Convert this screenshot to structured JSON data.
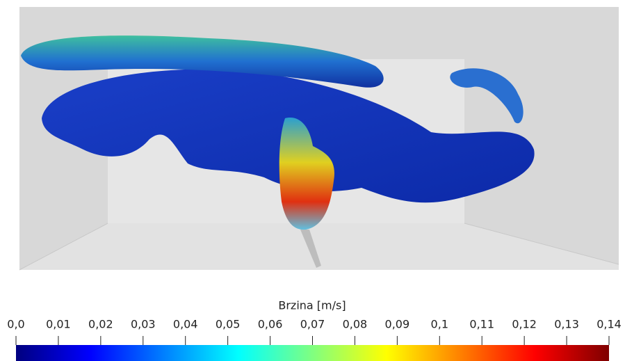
{
  "colorbar": {
    "title": "Brzina [m/s]",
    "range": [
      0,
      0.14
    ],
    "ticks": [
      {
        "value": 0,
        "label": "0,0"
      },
      {
        "value": 0.01,
        "label": "0,01"
      },
      {
        "value": 0.02,
        "label": "0,02"
      },
      {
        "value": 0.03,
        "label": "0,03"
      },
      {
        "value": 0.04,
        "label": "0,04"
      },
      {
        "value": 0.05,
        "label": "0,05"
      },
      {
        "value": 0.06,
        "label": "0,06"
      },
      {
        "value": 0.07,
        "label": "0,07"
      },
      {
        "value": 0.08,
        "label": "0,08"
      },
      {
        "value": 0.09,
        "label": "0,09"
      },
      {
        "value": 0.1,
        "label": "0,1"
      },
      {
        "value": 0.11,
        "label": "0,11"
      },
      {
        "value": 0.12,
        "label": "0,12"
      },
      {
        "value": 0.13,
        "label": "0,13"
      },
      {
        "value": 0.14,
        "label": "0,14"
      }
    ],
    "colormap": [
      "#00007f",
      "#0000ff",
      "#0080ff",
      "#00ffff",
      "#80ff80",
      "#ffff00",
      "#ff8000",
      "#ff0000",
      "#7f0000"
    ]
  }
}
